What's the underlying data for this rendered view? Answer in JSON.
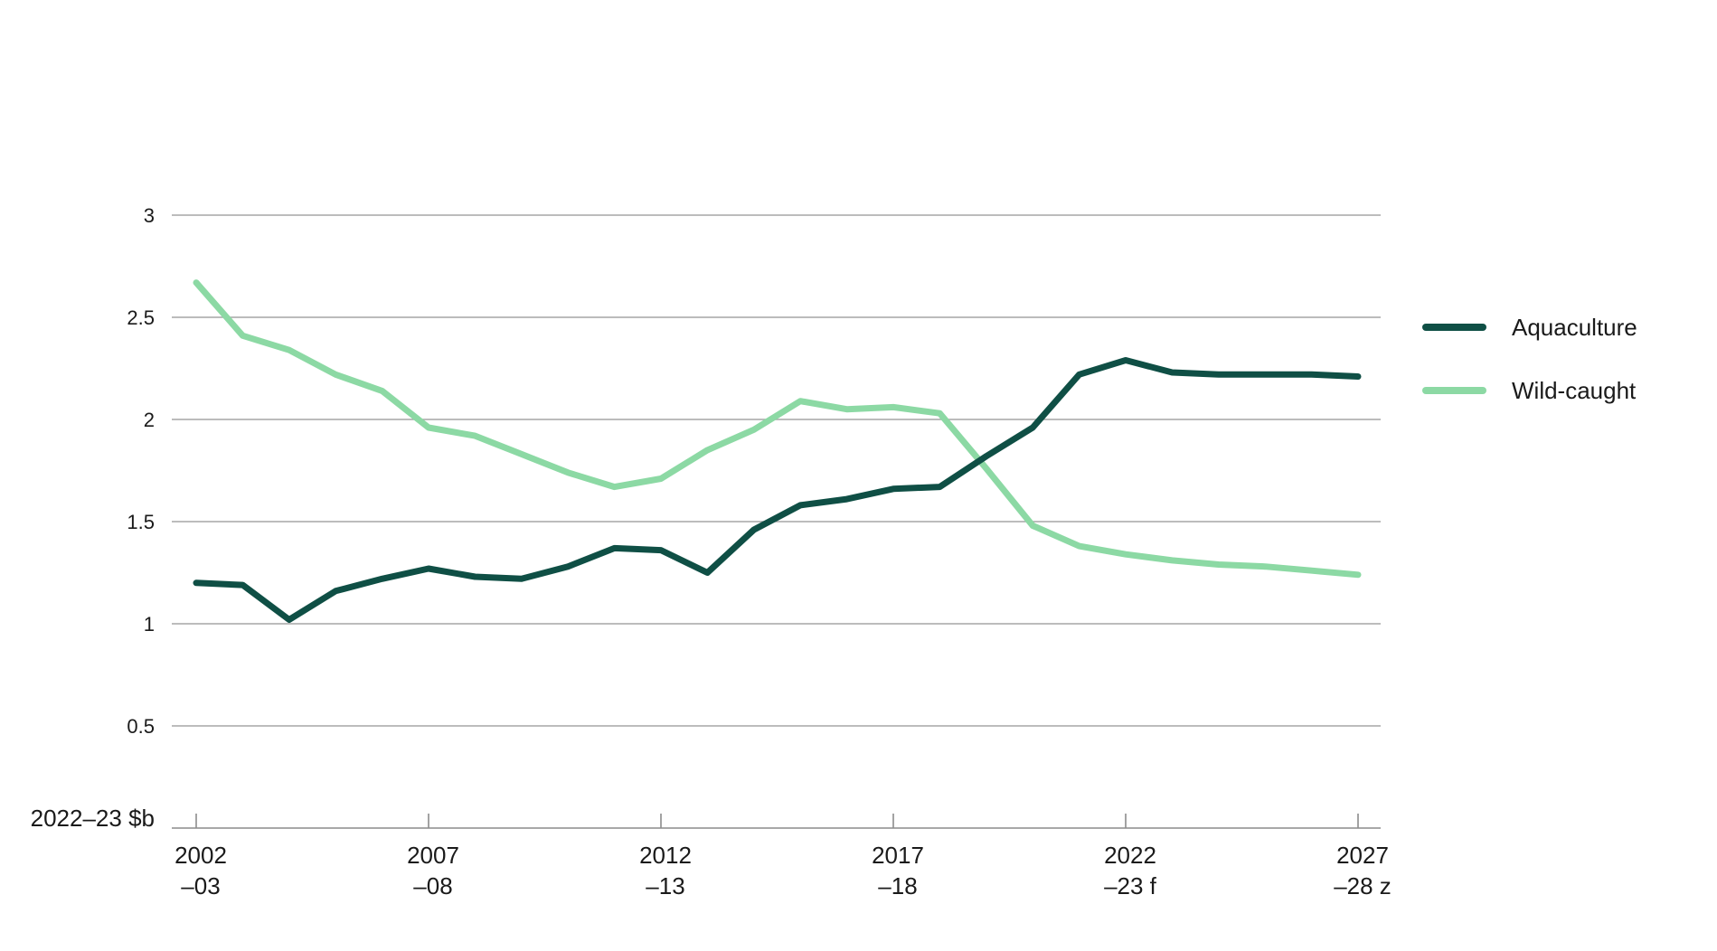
{
  "chart_data": {
    "type": "line",
    "ylabel": "2022–23 $b",
    "ylim": [
      0,
      3
    ],
    "yticks": [
      "3",
      "2.5",
      "2",
      "1.5",
      "1",
      "0.5"
    ],
    "ytick_values": [
      3,
      2.5,
      2,
      1.5,
      1,
      0.5
    ],
    "x": [
      "2002–03",
      "2003–04",
      "2004–05",
      "2005–06",
      "2006–07",
      "2007–08",
      "2008–09",
      "2009–10",
      "2010–11",
      "2011–12",
      "2012–13",
      "2013–14",
      "2014–15",
      "2015–16",
      "2016–17",
      "2017–18",
      "2018–19",
      "2019–20",
      "2020–21",
      "2021–22",
      "2022–23",
      "2023–24",
      "2024–25",
      "2025–26",
      "2026–27",
      "2027–28"
    ],
    "xticks": [
      {
        "index": 0,
        "line1": "2002",
        "line2": "–03"
      },
      {
        "index": 5,
        "line1": "2007",
        "line2": "–08"
      },
      {
        "index": 10,
        "line1": "2012",
        "line2": "–13"
      },
      {
        "index": 15,
        "line1": "2017",
        "line2": "–18"
      },
      {
        "index": 20,
        "line1": "2022",
        "line2": "–23 f"
      },
      {
        "index": 25,
        "line1": "2027",
        "line2": "–28 z"
      }
    ],
    "grid": true,
    "legend_position": "right",
    "series": [
      {
        "name": "Aquaculture",
        "color": "#0f4f45",
        "values": [
          1.2,
          1.19,
          1.02,
          1.16,
          1.22,
          1.27,
          1.23,
          1.22,
          1.28,
          1.37,
          1.36,
          1.25,
          1.46,
          1.58,
          1.61,
          1.66,
          1.67,
          1.82,
          1.96,
          2.22,
          2.29,
          2.23,
          2.22,
          2.22,
          2.22,
          2.21
        ]
      },
      {
        "name": "Wild-caught",
        "color": "#8cd9a4",
        "values": [
          2.67,
          2.41,
          2.34,
          2.22,
          2.14,
          1.96,
          1.92,
          1.83,
          1.74,
          1.67,
          1.71,
          1.85,
          1.95,
          2.09,
          2.05,
          2.06,
          2.03,
          1.76,
          1.48,
          1.38,
          1.34,
          1.31,
          1.29,
          1.28,
          1.26,
          1.24
        ]
      }
    ]
  }
}
